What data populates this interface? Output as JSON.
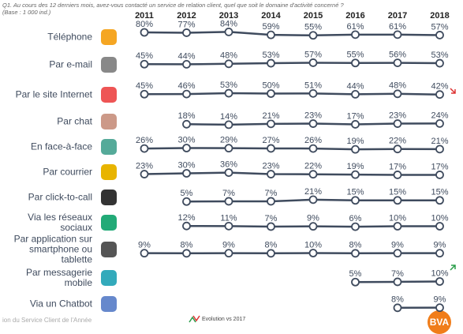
{
  "chart_data": {
    "type": "line",
    "title": "Q1. Au cours des 12 derniers mois, avez-vous contacté un service de relation client, quel que soit le domaine d'activité concerné ?",
    "subtitle": "(Base : 1 000 ind.)",
    "categories": [
      "2011",
      "2012",
      "2013",
      "2014",
      "2015",
      "2016",
      "2017",
      "2018"
    ],
    "legend_note": "Evolution vs 2017",
    "series": [
      {
        "name": "Téléphone",
        "color": "#3f4b5e",
        "values": [
          80,
          77,
          84,
          59,
          55,
          61,
          61,
          57
        ],
        "value_labels": [
          "80%",
          "77%",
          "84%",
          "59%",
          "55%",
          "61%",
          "61%",
          "57%"
        ]
      },
      {
        "name": "Par e-mail",
        "color": "#3f4b5e",
        "values": [
          45,
          44,
          48,
          53,
          57,
          55,
          56,
          53
        ],
        "value_labels": [
          "45%",
          "44%",
          "48%",
          "53%",
          "57%",
          "55%",
          "56%",
          "53%"
        ]
      },
      {
        "name": "Par le site Internet",
        "color": "#3f4b5e",
        "values": [
          45,
          46,
          53,
          50,
          51,
          44,
          48,
          42
        ],
        "value_labels": [
          "45%",
          "46%",
          "53%",
          "50%",
          "51%",
          "44%",
          "48%",
          "42%"
        ]
      },
      {
        "name": "Par chat",
        "color": "#3f4b5e",
        "values": [
          null,
          18,
          14,
          21,
          23,
          17,
          23,
          24
        ],
        "value_labels": [
          null,
          "18%",
          "14%",
          "21%",
          "23%",
          "17%",
          "23%",
          "24%"
        ]
      },
      {
        "name": "En face-à-face",
        "color": "#3f4b5e",
        "values": [
          26,
          30,
          29,
          27,
          26,
          19,
          22,
          21
        ],
        "value_labels": [
          "26%",
          "30%",
          "29%",
          "27%",
          "26%",
          "19%",
          "22%",
          "21%"
        ]
      },
      {
        "name": "Par courrier",
        "color": "#3f4b5e",
        "values": [
          23,
          30,
          36,
          23,
          22,
          19,
          17,
          17
        ],
        "value_labels": [
          "23%",
          "30%",
          "36%",
          "23%",
          "22%",
          "19%",
          "17%",
          "17%"
        ]
      },
      {
        "name": "Par click-to-call",
        "color": "#3f4b5e",
        "values": [
          null,
          5,
          7,
          7,
          21,
          15,
          15,
          15
        ],
        "value_labels": [
          null,
          "5%",
          "7%",
          "7%",
          "21%",
          "15%",
          "15%",
          "15%"
        ]
      },
      {
        "name": "Via les réseaux sociaux",
        "color": "#3f4b5e",
        "values": [
          null,
          12,
          11,
          7,
          9,
          6,
          10,
          10
        ],
        "value_labels": [
          null,
          "12%",
          "11%",
          "7%",
          "9%",
          "6%",
          "10%",
          "10%"
        ]
      },
      {
        "name": "Par application sur smartphone ou tablette",
        "color": "#3f4b5e",
        "values": [
          9,
          8,
          9,
          8,
          10,
          8,
          9,
          9
        ],
        "value_labels": [
          "9%",
          "8%",
          "9%",
          "8%",
          "10%",
          "8%",
          "9%",
          "9%"
        ]
      },
      {
        "name": "Par messagerie mobile",
        "color": "#3f4b5e",
        "values": [
          null,
          null,
          null,
          null,
          null,
          5,
          7,
          10
        ],
        "value_labels": [
          null,
          null,
          null,
          null,
          null,
          "5%",
          "7%",
          "10%"
        ]
      },
      {
        "name": "Via un Chatbot",
        "color": "#3f4b5e",
        "values": [
          null,
          null,
          null,
          null,
          null,
          null,
          8,
          9
        ],
        "value_labels": [
          null,
          null,
          null,
          null,
          null,
          null,
          "8%",
          "9%"
        ]
      }
    ]
  },
  "footer": "ion du Service Client de l'Année",
  "logo": "BVA"
}
